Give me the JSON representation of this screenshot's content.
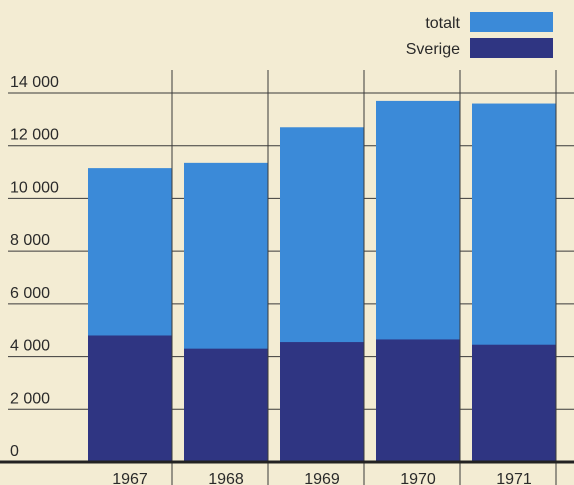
{
  "chart_data": {
    "type": "bar",
    "categories": [
      "1967",
      "1968",
      "1969",
      "1970",
      "1971"
    ],
    "series": [
      {
        "name": "totalt",
        "color": "#3b8ad8",
        "values": [
          11150,
          11350,
          12700,
          13700,
          13600
        ]
      },
      {
        "name": "Sverige",
        "color": "#2f3582",
        "values": [
          4800,
          4300,
          4550,
          4650,
          4450
        ]
      }
    ],
    "ylim": [
      0,
      14000
    ],
    "yticks": [
      0,
      {
        "value": 2000,
        "label": "2 000"
      },
      {
        "value": 4000,
        "label": "4 000"
      },
      {
        "value": 6000,
        "label": "6 000"
      },
      {
        "value": 8000,
        "label": "8 000"
      },
      {
        "value": 10000,
        "label": "10 000"
      },
      {
        "value": 12000,
        "label": "12 000"
      },
      {
        "value": 14000,
        "label": "14 000"
      }
    ],
    "grid": true
  }
}
